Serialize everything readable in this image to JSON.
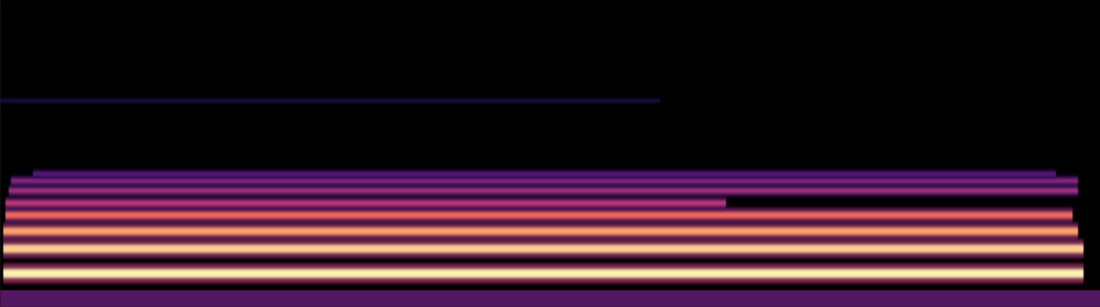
{
  "chart_data": {
    "type": "spectrogram",
    "tick_labels": false,
    "xlim": [
      0,
      100
    ],
    "ylim": [
      0,
      128
    ],
    "color_range": [
      0,
      1
    ],
    "floor": {
      "y": [
        0,
        7
      ],
      "x": [
        0,
        100
      ],
      "level": 0.33
    },
    "bands": [
      {
        "y": 14,
        "x": [
          0.3,
          98.5
        ],
        "level": 0.97
      },
      {
        "y": 24.3,
        "x": [
          0.3,
          98.5
        ],
        "level": 0.9
      },
      {
        "y": 31.6,
        "x": [
          0.3,
          98
        ],
        "level": 0.8
      },
      {
        "y": 38.3,
        "x": [
          0.5,
          97.5
        ],
        "level": 0.68
      },
      {
        "y": 43.3,
        "x": [
          0.5,
          66
        ],
        "level": 0.52
      },
      {
        "y": 48.5,
        "x": [
          0.8,
          98
        ],
        "level": 0.46
      },
      {
        "y": 52.6,
        "x": [
          1,
          98
        ],
        "level": 0.4
      },
      {
        "y": 55.5,
        "x": [
          3,
          96
        ],
        "level": 0.3
      },
      {
        "y": 86,
        "x": [
          0,
          60
        ],
        "level": 0.12
      }
    ]
  }
}
